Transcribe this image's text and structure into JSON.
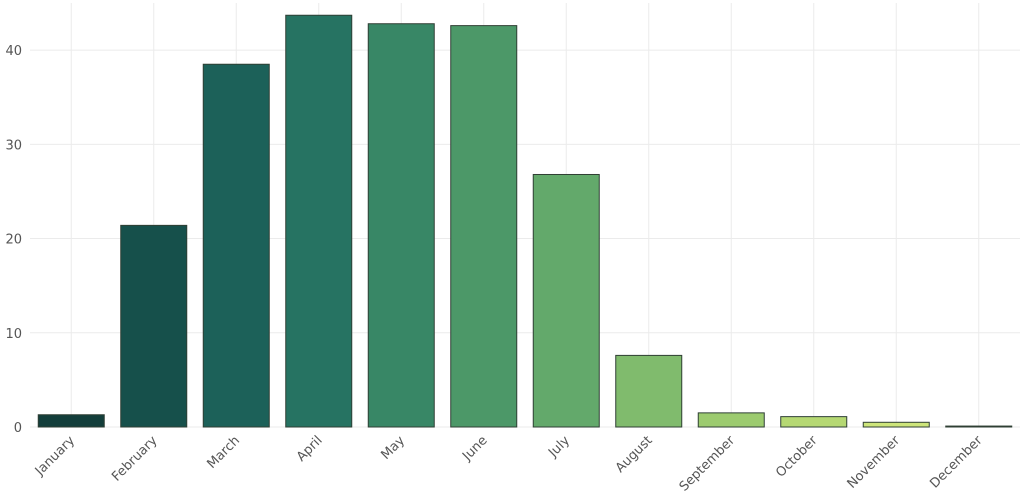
{
  "chart_data": {
    "type": "bar",
    "title": "",
    "xlabel": "",
    "ylabel": "",
    "categories": [
      "January",
      "February",
      "March",
      "April",
      "May",
      "June",
      "July",
      "August",
      "September",
      "October",
      "November",
      "December"
    ],
    "values": [
      1.3,
      21.4,
      38.5,
      43.7,
      42.8,
      42.6,
      26.8,
      7.6,
      1.5,
      1.1,
      0.5,
      0.1
    ],
    "colors": [
      "#133e3b",
      "#16504b",
      "#1c6159",
      "#267362",
      "#388766",
      "#4c9868",
      "#63a96b",
      "#80bb6d",
      "#9ccb6f",
      "#b5d873",
      "#cde57a",
      "#e2f090"
    ],
    "ylim": [
      0,
      45
    ],
    "yticks": [
      0,
      10,
      20,
      30,
      40
    ],
    "grid": true,
    "legend": "none"
  }
}
